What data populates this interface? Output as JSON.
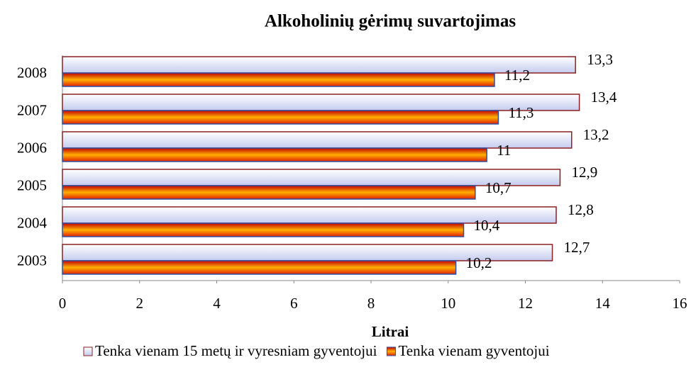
{
  "chart_data": {
    "type": "bar",
    "orientation": "horizontal",
    "title": "Alkoholinių gėrimų suvartojimas",
    "xlabel": "Litrai",
    "categories": [
      "2008",
      "2007",
      "2006",
      "2005",
      "2004",
      "2003"
    ],
    "series": [
      {
        "name": "Tenka vienam 15 metų ir vyresniam gyventojui",
        "color": "#c4cbee",
        "values": [
          13.3,
          13.4,
          13.2,
          12.9,
          12.8,
          12.7
        ],
        "value_labels": [
          "13,3",
          "13,4",
          "13,2",
          "12,9",
          "12,8",
          "12,7"
        ]
      },
      {
        "name": "Tenka vienam gyventojui",
        "color": "#e02000",
        "values": [
          11.2,
          11.3,
          11,
          10.7,
          10.4,
          10.2
        ],
        "value_labels": [
          "11,2",
          "11,3",
          "11",
          "10,7",
          "10,4",
          "10,2"
        ]
      }
    ],
    "xlim": [
      0,
      16
    ],
    "xticks": [
      0,
      2,
      4,
      6,
      8,
      10,
      12,
      14,
      16
    ],
    "grid": false
  }
}
